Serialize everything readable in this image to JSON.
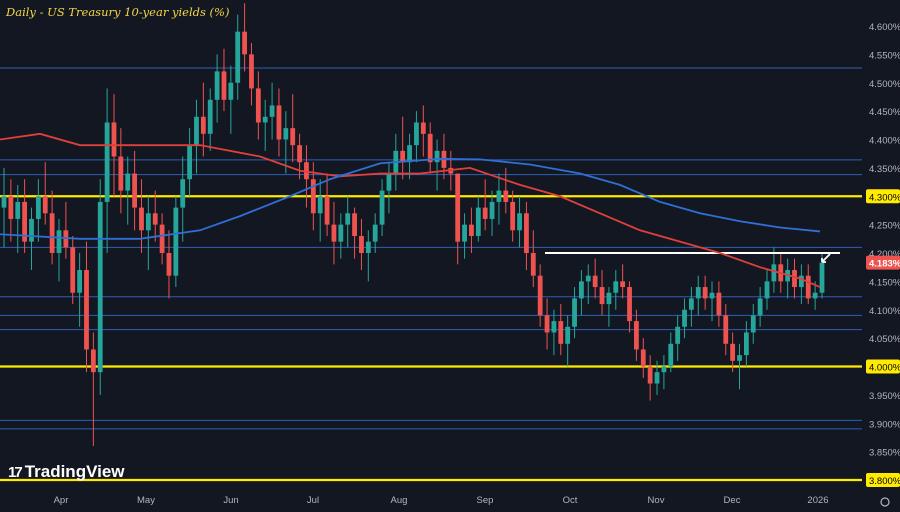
{
  "title": "Daily - US Treasury 10-year yields (%)",
  "brand": "TradingView",
  "colors": {
    "background": "#131722",
    "up": "#26a69a",
    "down": "#ef5350",
    "ma_red": "#e0403a",
    "ma_blue": "#2f6fd6",
    "hline_blue": "#2f5fb4",
    "hline_yellow": "#ffea00",
    "resistance": "#ffffff"
  },
  "chart_data": {
    "type": "candlestick",
    "title": "Daily - US Treasury 10-year yields (%)",
    "xlabel": "",
    "ylabel": "",
    "ylim": [
      3.78,
      4.64
    ],
    "y_ticks": [
      "4.600%",
      "4.550%",
      "4.500%",
      "4.450%",
      "4.400%",
      "4.350%",
      "4.300%",
      "4.250%",
      "4.200%",
      "4.150%",
      "4.100%",
      "4.050%",
      "4.000%",
      "3.950%",
      "3.900%",
      "3.850%",
      "3.800%"
    ],
    "x_ticks": [
      "Apr",
      "May",
      "Jun",
      "Jul",
      "Aug",
      "Sep",
      "Oct",
      "Nov",
      "Dec",
      "2026"
    ],
    "last_price_label": "4.183%",
    "current_value": 4.183,
    "yellow_levels": [
      4.3,
      4.0,
      3.8
    ],
    "blue_levels": [
      4.526,
      4.364,
      4.338,
      4.21,
      4.123,
      4.09,
      4.065,
      3.905,
      3.89
    ],
    "resistance_level": 4.2,
    "series": [
      {
        "kind": "moving_average",
        "points": [
          [
            0,
            4.4
          ],
          [
            40,
            4.41
          ],
          [
            80,
            4.39
          ],
          [
            140,
            4.39
          ],
          [
            200,
            4.39
          ],
          [
            260,
            4.37
          ],
          [
            300,
            4.345
          ],
          [
            340,
            4.335
          ],
          [
            380,
            4.34
          ],
          [
            420,
            4.34
          ],
          [
            470,
            4.35
          ],
          [
            520,
            4.32
          ],
          [
            560,
            4.3
          ],
          [
            600,
            4.27
          ],
          [
            640,
            4.24
          ],
          [
            680,
            4.22
          ],
          [
            720,
            4.2
          ],
          [
            760,
            4.175
          ],
          [
            800,
            4.155
          ],
          [
            820,
            4.14
          ]
        ]
      },
      {
        "kind": "moving_average",
        "points": [
          [
            0,
            4.233
          ],
          [
            80,
            4.225
          ],
          [
            140,
            4.225
          ],
          [
            200,
            4.24
          ],
          [
            240,
            4.265
          ],
          [
            290,
            4.3
          ],
          [
            330,
            4.33
          ],
          [
            380,
            4.358
          ],
          [
            440,
            4.366
          ],
          [
            480,
            4.365
          ],
          [
            530,
            4.356
          ],
          [
            580,
            4.34
          ],
          [
            620,
            4.32
          ],
          [
            660,
            4.29
          ],
          [
            700,
            4.27
          ],
          [
            740,
            4.256
          ],
          [
            780,
            4.245
          ],
          [
            820,
            4.238
          ]
        ]
      },
      {
        "kind": "candles",
        "ohlc": [
          [
            4.28,
            4.35,
            4.21,
            4.3
          ],
          [
            4.3,
            4.33,
            4.22,
            4.26
          ],
          [
            4.26,
            4.32,
            4.2,
            4.29
          ],
          [
            4.29,
            4.33,
            4.2,
            4.22
          ],
          [
            4.22,
            4.28,
            4.17,
            4.26
          ],
          [
            4.26,
            4.33,
            4.22,
            4.3
          ],
          [
            4.3,
            4.36,
            4.25,
            4.27
          ],
          [
            4.27,
            4.31,
            4.18,
            4.2
          ],
          [
            4.2,
            4.26,
            4.15,
            4.24
          ],
          [
            4.24,
            4.29,
            4.19,
            4.21
          ],
          [
            4.21,
            4.23,
            4.11,
            4.13
          ],
          [
            4.13,
            4.2,
            4.07,
            4.17
          ],
          [
            4.17,
            4.22,
            3.99,
            4.03
          ],
          [
            4.03,
            4.06,
            3.86,
            3.99
          ],
          [
            3.99,
            4.33,
            3.95,
            4.29
          ],
          [
            4.29,
            4.49,
            4.2,
            4.43
          ],
          [
            4.43,
            4.48,
            4.3,
            4.37
          ],
          [
            4.37,
            4.42,
            4.27,
            4.31
          ],
          [
            4.31,
            4.37,
            4.25,
            4.34
          ],
          [
            4.34,
            4.38,
            4.24,
            4.28
          ],
          [
            4.28,
            4.33,
            4.2,
            4.24
          ],
          [
            4.24,
            4.3,
            4.17,
            4.27
          ],
          [
            4.27,
            4.31,
            4.22,
            4.25
          ],
          [
            4.25,
            4.27,
            4.18,
            4.2
          ],
          [
            4.2,
            4.24,
            4.12,
            4.16
          ],
          [
            4.16,
            4.3,
            4.14,
            4.28
          ],
          [
            4.28,
            4.37,
            4.22,
            4.33
          ],
          [
            4.33,
            4.42,
            4.3,
            4.39
          ],
          [
            4.39,
            4.47,
            4.34,
            4.44
          ],
          [
            4.44,
            4.5,
            4.37,
            4.41
          ],
          [
            4.41,
            4.49,
            4.38,
            4.47
          ],
          [
            4.47,
            4.55,
            4.43,
            4.52
          ],
          [
            4.52,
            4.56,
            4.45,
            4.47
          ],
          [
            4.47,
            4.53,
            4.41,
            4.5
          ],
          [
            4.5,
            4.62,
            4.47,
            4.59
          ],
          [
            4.59,
            4.64,
            4.52,
            4.55
          ],
          [
            4.55,
            4.57,
            4.46,
            4.49
          ],
          [
            4.49,
            4.52,
            4.4,
            4.43
          ],
          [
            4.43,
            4.47,
            4.38,
            4.44
          ],
          [
            4.44,
            4.5,
            4.4,
            4.46
          ],
          [
            4.46,
            4.49,
            4.37,
            4.4
          ],
          [
            4.4,
            4.45,
            4.34,
            4.42
          ],
          [
            4.42,
            4.48,
            4.36,
            4.39
          ],
          [
            4.39,
            4.41,
            4.33,
            4.36
          ],
          [
            4.36,
            4.39,
            4.28,
            4.33
          ],
          [
            4.33,
            4.36,
            4.24,
            4.27
          ],
          [
            4.27,
            4.33,
            4.22,
            4.3
          ],
          [
            4.3,
            4.34,
            4.23,
            4.25
          ],
          [
            4.25,
            4.29,
            4.18,
            4.22
          ],
          [
            4.22,
            4.27,
            4.19,
            4.25
          ],
          [
            4.25,
            4.3,
            4.21,
            4.27
          ],
          [
            4.27,
            4.28,
            4.19,
            4.23
          ],
          [
            4.23,
            4.26,
            4.17,
            4.2
          ],
          [
            4.2,
            4.24,
            4.15,
            4.22
          ],
          [
            4.22,
            4.27,
            4.2,
            4.25
          ],
          [
            4.25,
            4.33,
            4.23,
            4.31
          ],
          [
            4.31,
            4.36,
            4.27,
            4.34
          ],
          [
            4.34,
            4.41,
            4.31,
            4.38
          ],
          [
            4.38,
            4.44,
            4.33,
            4.36
          ],
          [
            4.36,
            4.41,
            4.33,
            4.39
          ],
          [
            4.39,
            4.45,
            4.36,
            4.43
          ],
          [
            4.43,
            4.46,
            4.37,
            4.41
          ],
          [
            4.41,
            4.43,
            4.34,
            4.36
          ],
          [
            4.36,
            4.4,
            4.31,
            4.38
          ],
          [
            4.38,
            4.41,
            4.33,
            4.35
          ],
          [
            4.35,
            4.38,
            4.31,
            4.34
          ],
          [
            4.34,
            4.34,
            4.18,
            4.22
          ],
          [
            4.22,
            4.27,
            4.19,
            4.25
          ],
          [
            4.25,
            4.28,
            4.2,
            4.23
          ],
          [
            4.23,
            4.3,
            4.22,
            4.28
          ],
          [
            4.28,
            4.33,
            4.24,
            4.26
          ],
          [
            4.26,
            4.31,
            4.23,
            4.29
          ],
          [
            4.29,
            4.34,
            4.25,
            4.31
          ],
          [
            4.31,
            4.35,
            4.27,
            4.29
          ],
          [
            4.29,
            4.31,
            4.22,
            4.24
          ],
          [
            4.24,
            4.3,
            4.21,
            4.27
          ],
          [
            4.27,
            4.29,
            4.17,
            4.2
          ],
          [
            4.2,
            4.24,
            4.14,
            4.16
          ],
          [
            4.16,
            4.18,
            4.07,
            4.09
          ],
          [
            4.09,
            4.12,
            4.03,
            4.06
          ],
          [
            4.06,
            4.1,
            4.02,
            4.08
          ],
          [
            4.08,
            4.11,
            4.02,
            4.04
          ],
          [
            4.04,
            4.09,
            4.0,
            4.07
          ],
          [
            4.07,
            4.14,
            4.05,
            4.12
          ],
          [
            4.12,
            4.17,
            4.09,
            4.15
          ],
          [
            4.15,
            4.18,
            4.11,
            4.16
          ],
          [
            4.16,
            4.19,
            4.12,
            4.14
          ],
          [
            4.14,
            4.17,
            4.09,
            4.11
          ],
          [
            4.11,
            4.14,
            4.07,
            4.13
          ],
          [
            4.13,
            4.17,
            4.1,
            4.15
          ],
          [
            4.15,
            4.18,
            4.12,
            4.14
          ],
          [
            4.14,
            4.15,
            4.06,
            4.08
          ],
          [
            4.08,
            4.1,
            4.01,
            4.03
          ],
          [
            4.03,
            4.05,
            3.98,
            4.0
          ],
          [
            4.0,
            4.02,
            3.94,
            3.97
          ],
          [
            3.97,
            4.01,
            3.95,
            3.99
          ],
          [
            3.99,
            4.02,
            3.96,
            4.0
          ],
          [
            4.0,
            4.06,
            3.99,
            4.04
          ],
          [
            4.04,
            4.09,
            4.01,
            4.07
          ],
          [
            4.07,
            4.12,
            4.05,
            4.1
          ],
          [
            4.1,
            4.14,
            4.07,
            4.12
          ],
          [
            4.12,
            4.16,
            4.09,
            4.14
          ],
          [
            4.14,
            4.16,
            4.1,
            4.12
          ],
          [
            4.12,
            4.15,
            4.08,
            4.13
          ],
          [
            4.13,
            4.15,
            4.07,
            4.09
          ],
          [
            4.09,
            4.11,
            4.02,
            4.04
          ],
          [
            4.04,
            4.06,
            3.99,
            4.01
          ],
          [
            4.01,
            4.04,
            3.96,
            4.02
          ],
          [
            4.02,
            4.08,
            4.0,
            4.06
          ],
          [
            4.06,
            4.11,
            4.04,
            4.09
          ],
          [
            4.09,
            4.14,
            4.07,
            4.12
          ],
          [
            4.12,
            4.17,
            4.1,
            4.15
          ],
          [
            4.15,
            4.21,
            4.13,
            4.18
          ],
          [
            4.18,
            4.2,
            4.13,
            4.15
          ],
          [
            4.15,
            4.19,
            4.12,
            4.17
          ],
          [
            4.17,
            4.19,
            4.12,
            4.14
          ],
          [
            4.14,
            4.18,
            4.11,
            4.16
          ],
          [
            4.16,
            4.18,
            4.11,
            4.12
          ],
          [
            4.12,
            4.15,
            4.1,
            4.13
          ],
          [
            4.13,
            4.2,
            4.12,
            4.183
          ]
        ]
      }
    ]
  }
}
